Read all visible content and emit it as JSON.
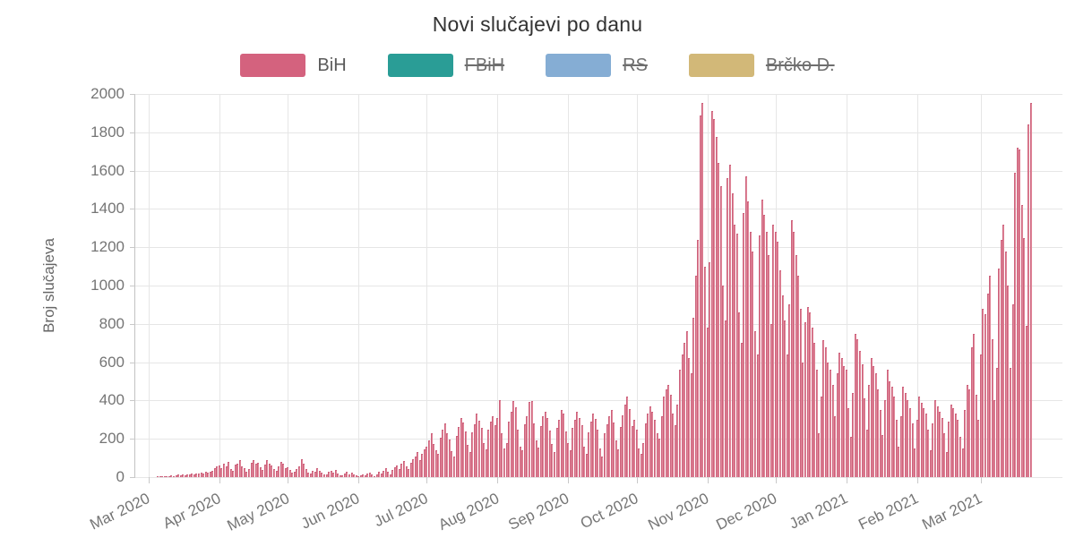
{
  "chart_data": {
    "type": "bar",
    "title": "Novi slučajevi po danu",
    "ylabel": "Broj slučajeva",
    "xlabel": "",
    "ylim": [
      0,
      2000
    ],
    "grid": true,
    "legend_position": "top",
    "bar_fill_color": "#e28a9b",
    "bar_border_color": "#cc607b",
    "legend": [
      {
        "label": "BiH",
        "color": "#d4627e",
        "active": true
      },
      {
        "label": "FBiH",
        "color": "#2a9d96",
        "active": false
      },
      {
        "label": "RS",
        "color": "#85add4",
        "active": false
      },
      {
        "label": "Brčko D.",
        "color": "#d2b878",
        "active": false
      }
    ],
    "y_ticks": [
      0,
      200,
      400,
      600,
      800,
      1000,
      1200,
      1400,
      1600,
      1800,
      2000
    ],
    "x_ticks": [
      {
        "label": "Mar 2020",
        "day_index": 0
      },
      {
        "label": "Apr 2020",
        "day_index": 31
      },
      {
        "label": "May 2020",
        "day_index": 61
      },
      {
        "label": "Jun 2020",
        "day_index": 92
      },
      {
        "label": "Jul 2020",
        "day_index": 122
      },
      {
        "label": "Aug 2020",
        "day_index": 153
      },
      {
        "label": "Sep 2020",
        "day_index": 184
      },
      {
        "label": "Oct 2020",
        "day_index": 214
      },
      {
        "label": "Nov 2020",
        "day_index": 245
      },
      {
        "label": "Dec 2020",
        "day_index": 275
      },
      {
        "label": "Jan 2021",
        "day_index": 306
      },
      {
        "label": "Feb 2021",
        "day_index": 337
      },
      {
        "label": "Mar 2021",
        "day_index": 365
      }
    ],
    "series": [
      {
        "name": "BiH",
        "values": [
          0,
          0,
          0,
          0,
          2,
          3,
          3,
          5,
          4,
          6,
          8,
          5,
          10,
          12,
          9,
          14,
          11,
          16,
          13,
          18,
          15,
          21,
          19,
          24,
          17,
          26,
          22,
          30,
          34,
          48,
          58,
          62,
          45,
          70,
          55,
          78,
          40,
          35,
          66,
          72,
          87,
          58,
          48,
          30,
          42,
          74,
          88,
          69,
          77,
          50,
          38,
          65,
          90,
          72,
          60,
          44,
          32,
          55,
          80,
          68,
          47,
          50,
          38,
          25,
          30,
          44,
          58,
          92,
          70,
          41,
          22,
          18,
          35,
          28,
          46,
          33,
          24,
          15,
          12,
          26,
          31,
          22,
          36,
          18,
          10,
          8,
          20,
          27,
          16,
          24,
          13,
          9,
          6,
          10,
          14,
          8,
          18,
          24,
          12,
          7,
          16,
          28,
          20,
          34,
          45,
          26,
          15,
          38,
          52,
          61,
          44,
          70,
          85,
          58,
          40,
          76,
          95,
          110,
          131,
          88,
          120,
          146,
          160,
          190,
          228,
          175,
          140,
          120,
          205,
          248,
          280,
          230,
          198,
          135,
          110,
          215,
          262,
          310,
          285,
          240,
          170,
          130,
          235,
          278,
          330,
          295,
          255,
          180,
          145,
          250,
          288,
          320,
          270,
          310,
          402,
          228,
          150,
          180,
          290,
          340,
          396,
          365,
          250,
          160,
          140,
          275,
          320,
          391,
          397,
          282,
          190,
          154,
          265,
          320,
          341,
          308,
          245,
          175,
          130,
          258,
          300,
          352,
          330,
          240,
          180,
          140,
          255,
          300,
          340,
          310,
          270,
          160,
          120,
          235,
          290,
          330,
          302,
          248,
          150,
          110,
          228,
          275,
          318,
          350,
          285,
          190,
          145,
          260,
          325,
          380,
          420,
          355,
          265,
          300,
          250,
          150,
          120,
          180,
          280,
          330,
          370,
          340,
          300,
          230,
          200,
          320,
          420,
          458,
          481,
          430,
          330,
          270,
          380,
          560,
          640,
          700,
          760,
          620,
          540,
          830,
          1050,
          1240,
          1890,
          1955,
          1100,
          780,
          1120,
          1910,
          1870,
          1775,
          1640,
          1520,
          1000,
          820,
          1560,
          1630,
          1480,
          1320,
          1270,
          860,
          700,
          1380,
          1570,
          1440,
          1280,
          1180,
          760,
          640,
          1260,
          1450,
          1370,
          1280,
          1160,
          800,
          1320,
          1280,
          1230,
          1080,
          950,
          820,
          640,
          900,
          1340,
          1280,
          1160,
          1050,
          880,
          600,
          810,
          890,
          860,
          780,
          700,
          560,
          230,
          420,
          715,
          680,
          600,
          560,
          480,
          320,
          540,
          650,
          620,
          580,
          560,
          360,
          210,
          440,
          750,
          720,
          660,
          590,
          410,
          250,
          480,
          620,
          580,
          540,
          460,
          350,
          220,
          400,
          560,
          500,
          470,
          420,
          300,
          160,
          320,
          473,
          440,
          400,
          360,
          280,
          150,
          300,
          420,
          390,
          360,
          330,
          250,
          140,
          280,
          400,
          370,
          340,
          310,
          230,
          130,
          290,
          380,
          360,
          330,
          300,
          210,
          150,
          350,
          480,
          460,
          680,
          747,
          430,
          300,
          640,
          880,
          850,
          960,
          1050,
          720,
          400,
          570,
          1090,
          1240,
          1320,
          1180,
          1000,
          570,
          900,
          1590,
          1720,
          1710,
          1420,
          1250,
          790,
          1840,
          1953
        ]
      }
    ]
  }
}
